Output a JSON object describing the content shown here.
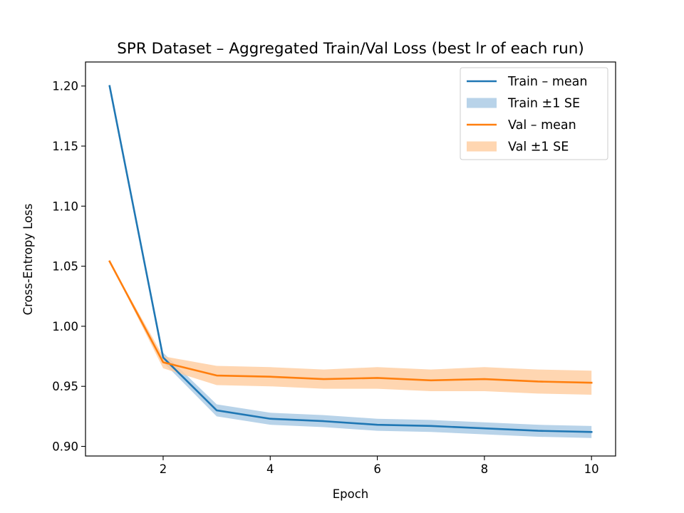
{
  "chart_data": {
    "type": "line",
    "title": "SPR Dataset – Aggregated Train/Val Loss (best lr of each run)",
    "xlabel": "Epoch",
    "ylabel": "Cross-Entropy Loss",
    "xlim": [
      0.55,
      10.45
    ],
    "ylim": [
      0.892,
      1.22
    ],
    "xticks": [
      2,
      4,
      6,
      8,
      10
    ],
    "yticks": [
      0.9,
      0.95,
      1.0,
      1.05,
      1.1,
      1.15,
      1.2
    ],
    "x": [
      1,
      2,
      3,
      4,
      5,
      6,
      7,
      8,
      9,
      10
    ],
    "grid": false,
    "legend_position": "upper right",
    "series": [
      {
        "name": "Train – mean",
        "band_name": "Train ±1 SE",
        "color": "#1f77b4",
        "band_color": "#a6c8e3",
        "values": [
          1.2,
          0.974,
          0.93,
          0.923,
          0.921,
          0.918,
          0.917,
          0.915,
          0.913,
          0.912
        ],
        "se": [
          0.0,
          0.004,
          0.005,
          0.005,
          0.005,
          0.005,
          0.005,
          0.005,
          0.005,
          0.005
        ]
      },
      {
        "name": "Val – mean",
        "band_name": "Val ±1 SE",
        "color": "#ff7f0e",
        "band_color": "#ffcc9e",
        "values": [
          1.054,
          0.97,
          0.959,
          0.958,
          0.956,
          0.957,
          0.955,
          0.956,
          0.954,
          0.953
        ],
        "se": [
          0.0,
          0.005,
          0.008,
          0.008,
          0.008,
          0.009,
          0.009,
          0.01,
          0.01,
          0.01
        ]
      }
    ]
  }
}
